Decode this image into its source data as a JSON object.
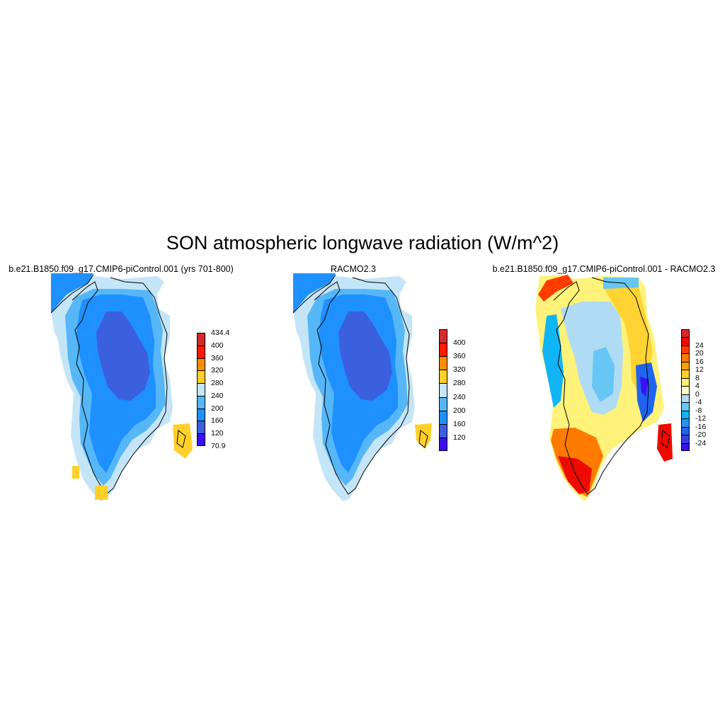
{
  "title": "SON atmospheric longwave radiation (W/m^2)",
  "panels": [
    {
      "title": "b.e21.B1850.f09_g17.CMIP6-piControl.001 (yrs 701-800)",
      "colorbar": {
        "colors": [
          "#3a10f0",
          "#3a5fdf",
          "#1e90ff",
          "#55b7f7",
          "#c4e5f7",
          "#ffd02a",
          "#ff8c00",
          "#ff1a00",
          "#d42a2a"
        ],
        "labels": [
          "70.9",
          "120",
          "160",
          "200",
          "240",
          "280",
          "320",
          "360",
          "400",
          "434.4"
        ]
      }
    },
    {
      "title": "RACMO2.3",
      "colorbar": {
        "colors": [
          "#3a10f0",
          "#3a5fdf",
          "#1e90ff",
          "#55b7f7",
          "#c4e5f7",
          "#ffd02a",
          "#ff8c00",
          "#ff1a00",
          "#d42a2a"
        ],
        "labels": [
          "120",
          "160",
          "200",
          "240",
          "280",
          "320",
          "360",
          "400"
        ]
      }
    },
    {
      "title": "b.e21.B1850.f09_g17.CMIP6-piControl.001 - RACMO2.3",
      "colorbar": {
        "colors": [
          "#3a10f0",
          "#3a3ee0",
          "#1e64ee",
          "#2c92f2",
          "#10b5f5",
          "#68c6f5",
          "#b0dbf5",
          "#fff9c4",
          "#fff27a",
          "#ffd02a",
          "#ffa200",
          "#ff7a00",
          "#ff3c00",
          "#ee0a00",
          "#d42a2a"
        ],
        "labels": [
          "-24",
          "-20",
          "-16",
          "-12",
          "-8",
          "-4",
          "0",
          "4",
          "8",
          "12",
          "16",
          "20",
          "24"
        ]
      }
    }
  ]
}
